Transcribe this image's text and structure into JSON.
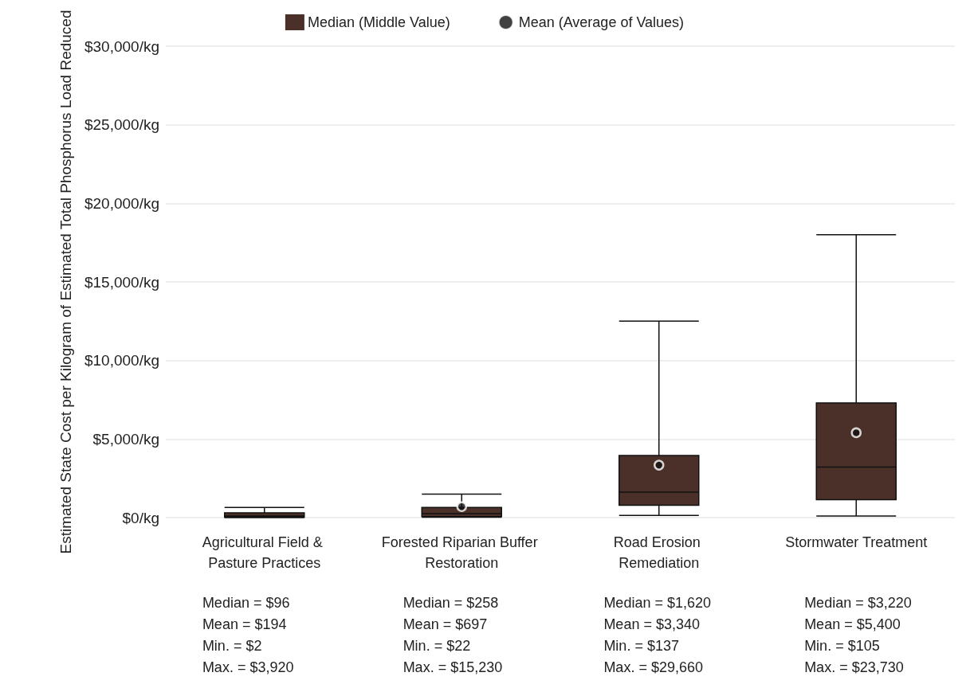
{
  "chart_data": {
    "type": "box",
    "ylabel": "Estimated State Cost per Kilogram of Estimated Total Phosphorus Load Reduced",
    "categories": [
      "Agricultural Field & Pasture Practices",
      "Forested Riparian Buffer Restoration",
      "Road Erosion Remediation",
      "Stormwater Treatment"
    ],
    "series": [
      {
        "name": "Median (Middle Value)",
        "color": "#4a3028",
        "boxes": [
          {
            "low": 2,
            "q1": 30,
            "median": 96,
            "q3": 300,
            "high": 650
          },
          {
            "low": 22,
            "q1": 60,
            "median": 258,
            "q3": 650,
            "high": 1500
          },
          {
            "low": 137,
            "q1": 790,
            "median": 1620,
            "q3": 3950,
            "high": 12500
          },
          {
            "low": 105,
            "q1": 1140,
            "median": 3220,
            "q3": 7300,
            "high": 18000
          }
        ]
      },
      {
        "name": "Mean (Average of Values)",
        "type": "scatter",
        "color": "#111111",
        "marker": "circle",
        "x": [
          "Forested Riparian Buffer Restoration",
          "Road Erosion Remediation",
          "Stormwater Treatment"
        ],
        "values": [
          697,
          3340,
          5400
        ]
      }
    ],
    "ylim": [
      0,
      30000
    ],
    "yticks": [
      {
        "value": 0,
        "label": "$0/kg"
      },
      {
        "value": 5000,
        "label": "$5,000/kg"
      },
      {
        "value": 10000,
        "label": "$10,000/kg"
      },
      {
        "value": 15000,
        "label": "$15,000/kg"
      },
      {
        "value": 20000,
        "label": "$20,000/kg"
      },
      {
        "value": 25000,
        "label": "$25,000/kg"
      },
      {
        "value": 30000,
        "label": "$30,000/kg"
      }
    ],
    "grid": "y",
    "legend": "top",
    "annotations": [
      "Median = $96\nMean = $194\nMin. = $2\nMax. = $3,920",
      "Median = $258\nMean = $697\nMin. = $22\nMax. = $15,230",
      "Median = $1,620\nMean = $3,340\nMin. = $137\nMax. = $29,660",
      "Median = $3,220\nMean = $5,400\nMin. = $105\nMax. = $23,730"
    ]
  }
}
